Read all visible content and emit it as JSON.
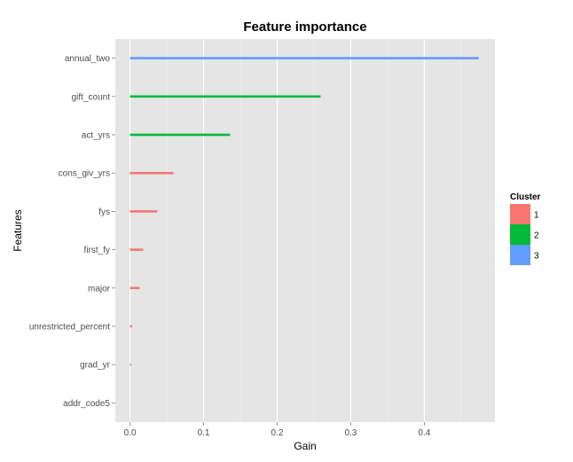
{
  "chart_data": {
    "type": "bar",
    "orientation": "horizontal",
    "title": "Feature importance",
    "xlabel": "Gain",
    "ylabel": "Features",
    "xlim": [
      -0.02,
      0.496
    ],
    "xticks": [
      "0.0",
      "0.1",
      "0.2",
      "0.3",
      "0.4"
    ],
    "xtick_values": [
      0.0,
      0.1,
      0.2,
      0.3,
      0.4
    ],
    "grid": true,
    "legend": {
      "title": "Cluster",
      "position": "right"
    },
    "categories": [
      "annual_two",
      "gift_count",
      "act_yrs",
      "cons_giv_yrs",
      "fys",
      "first_fy",
      "major",
      "unrestricted_percent",
      "grad_yr",
      "addr_code5"
    ],
    "values": [
      0.474,
      0.259,
      0.136,
      0.059,
      0.037,
      0.018,
      0.013,
      0.003,
      0.0015,
      0.0
    ],
    "cluster": [
      "3",
      "2",
      "2",
      "1",
      "1",
      "1",
      "1",
      "1",
      "1",
      "1"
    ],
    "clusters": [
      {
        "name": "1",
        "color": "#F8766D"
      },
      {
        "name": "2",
        "color": "#00BA38"
      },
      {
        "name": "3",
        "color": "#619CFF"
      }
    ]
  }
}
